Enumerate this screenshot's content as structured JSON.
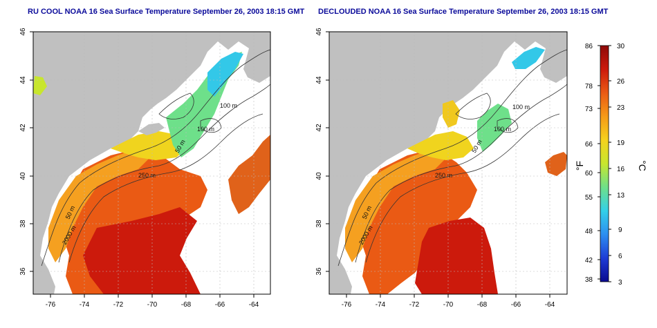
{
  "panels": [
    {
      "title": "RU COOL NOAA 16 Sea Surface Temperature September 26, 2003 18:15 GMT",
      "y_ticks": [
        "46",
        "44",
        "42",
        "40",
        "38",
        "36"
      ],
      "x_ticks": [
        "-76",
        "-74",
        "-72",
        "-70",
        "-68",
        "-66",
        "-64"
      ],
      "contours": [
        "100 m",
        "100 m",
        "50 m",
        "250 m",
        "50 m",
        "2000 m"
      ]
    },
    {
      "title": "DECLOUDED NOAA 16 Sea Surface Temperature September 26, 2003 18:15 GMT",
      "y_ticks": [
        "46",
        "44",
        "42",
        "40",
        "38",
        "36"
      ],
      "x_ticks": [
        "-76",
        "-74",
        "-72",
        "-70",
        "-68",
        "-66",
        "-64"
      ],
      "contours": [
        "100 m",
        "100 m",
        "50 m",
        "250 m",
        "50 m",
        "2000 m"
      ]
    }
  ],
  "colorbar": {
    "f_ticks": [
      "86",
      "78",
      "73",
      "66",
      "60",
      "55",
      "48",
      "42",
      "38"
    ],
    "c_ticks": [
      "30",
      "26",
      "23",
      "19",
      "16",
      "13",
      "9",
      "6",
      "3"
    ],
    "f_unit": "°F",
    "c_unit": "°C",
    "colors": [
      "#0a0a8f",
      "#1e3cd6",
      "#2d8ef0",
      "#33d0e8",
      "#6ee08a",
      "#c8e62e",
      "#f5d21e",
      "#f59a18",
      "#ea5a14",
      "#cc1a0c",
      "#8e0a0a"
    ]
  },
  "colors": {
    "land": "#c0c0c0",
    "ocean_cloud": "#ffffff",
    "title": "#0a0a9a",
    "grid": "#bbbbbb"
  }
}
